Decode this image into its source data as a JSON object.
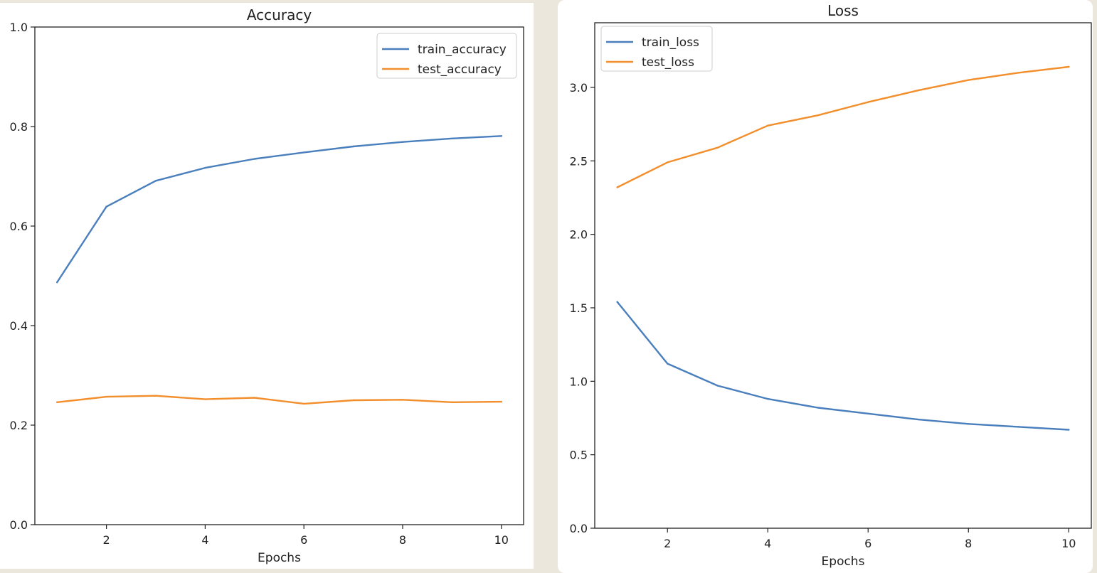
{
  "colors": {
    "series_1": "#4a7fbd",
    "series_2": "#f28e2b",
    "background": "#ece7dc"
  },
  "chart_data": [
    {
      "type": "line",
      "title": "Accuracy",
      "xlabel": "Epochs",
      "ylabel": "",
      "xlim": [
        0.55,
        10.45
      ],
      "ylim": [
        0.0,
        1.0
      ],
      "xticks": [
        2,
        4,
        6,
        8,
        10
      ],
      "xtick_labels": [
        "2",
        "4",
        "6",
        "8",
        "10"
      ],
      "yticks": [
        0.0,
        0.2,
        0.4,
        0.6,
        0.8,
        1.0
      ],
      "ytick_labels": [
        "0.0",
        "0.2",
        "0.4",
        "0.6",
        "0.8",
        "1.0"
      ],
      "legend_position": "top-right",
      "grid": false,
      "x": [
        1,
        2,
        3,
        4,
        5,
        6,
        7,
        8,
        9,
        10
      ],
      "series": [
        {
          "name": "train_accuracy",
          "color": "#4a7fbd",
          "values": [
            0.487,
            0.639,
            0.691,
            0.717,
            0.735,
            0.748,
            0.76,
            0.769,
            0.776,
            0.781
          ]
        },
        {
          "name": "test_accuracy",
          "color": "#f28e2b",
          "values": [
            0.246,
            0.257,
            0.259,
            0.252,
            0.255,
            0.243,
            0.25,
            0.251,
            0.246,
            0.247
          ]
        }
      ]
    },
    {
      "type": "line",
      "title": "Loss",
      "xlabel": "Epochs",
      "ylabel": "",
      "xlim": [
        0.55,
        10.45
      ],
      "ylim": [
        0.0,
        3.44
      ],
      "xticks": [
        2,
        4,
        6,
        8,
        10
      ],
      "xtick_labels": [
        "2",
        "4",
        "6",
        "8",
        "10"
      ],
      "yticks": [
        0.0,
        0.5,
        1.0,
        1.5,
        2.0,
        2.5,
        3.0
      ],
      "ytick_labels": [
        "0.0",
        "0.5",
        "1.0",
        "1.5",
        "2.0",
        "2.5",
        "3.0"
      ],
      "legend_position": "top-left",
      "grid": false,
      "x": [
        1,
        2,
        3,
        4,
        5,
        6,
        7,
        8,
        9,
        10
      ],
      "series": [
        {
          "name": "train_loss",
          "color": "#4a7fbd",
          "values": [
            1.54,
            1.12,
            0.97,
            0.88,
            0.82,
            0.78,
            0.74,
            0.71,
            0.69,
            0.67
          ]
        },
        {
          "name": "test_loss",
          "color": "#f28e2b",
          "values": [
            2.32,
            2.49,
            2.59,
            2.74,
            2.81,
            2.9,
            2.98,
            3.05,
            3.1,
            3.14
          ]
        }
      ]
    }
  ]
}
